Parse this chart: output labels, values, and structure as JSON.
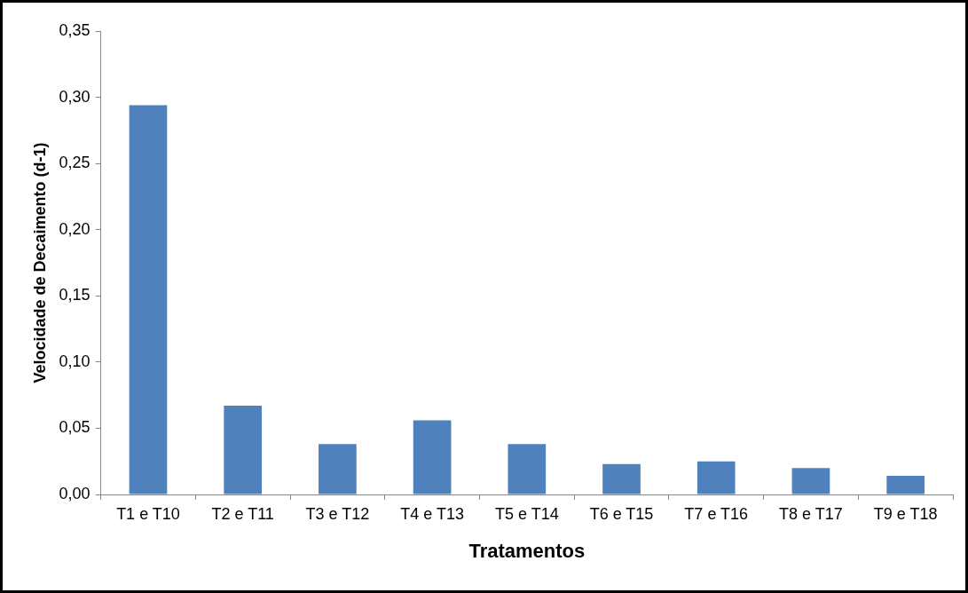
{
  "chart_data": {
    "type": "bar",
    "xlabel": "Tratamentos",
    "ylabel": "Velocidade de Decaimento (d-1)",
    "categories": [
      "T1 e T10",
      "T2 e T11",
      "T3 e T12",
      "T4 e T13",
      "T5 e T14",
      "T6 e T15",
      "T7 e T16",
      "T8 e T17",
      "T9 e T18"
    ],
    "values": [
      0.294,
      0.067,
      0.038,
      0.056,
      0.038,
      0.023,
      0.025,
      0.02,
      0.014
    ],
    "color": "#4f81bd",
    "ylim": [
      0,
      0.35
    ],
    "yticks": [
      {
        "value": 0,
        "label": "0,00"
      },
      {
        "value": 0.05,
        "label": "0,05"
      },
      {
        "value": 0.1,
        "label": "0,10"
      },
      {
        "value": 0.15,
        "label": "0,15"
      },
      {
        "value": 0.2,
        "label": "0,20"
      },
      {
        "value": 0.25,
        "label": "0,25"
      },
      {
        "value": 0.3,
        "label": "0,30"
      },
      {
        "value": 0.35,
        "label": "0,35"
      }
    ],
    "grid": false,
    "legend": false
  }
}
